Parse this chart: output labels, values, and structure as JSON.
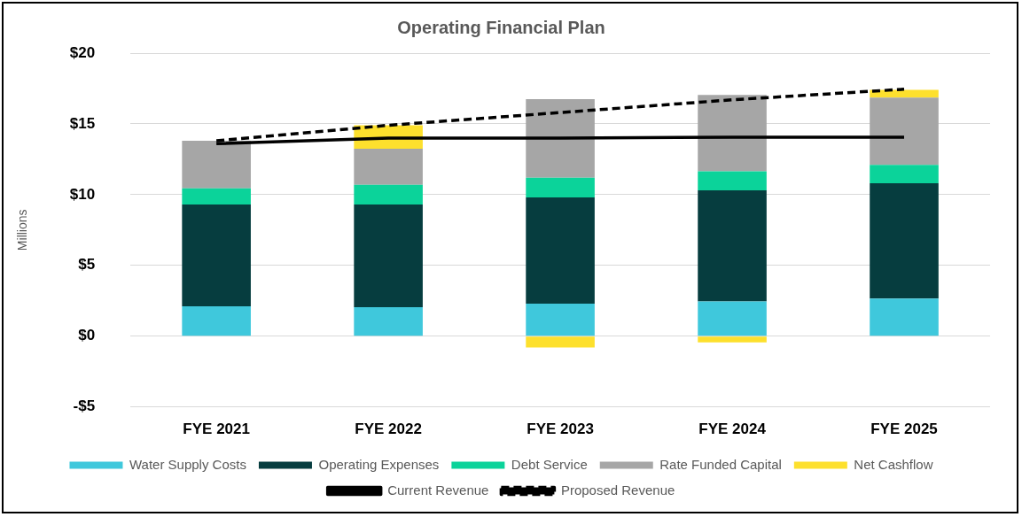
{
  "chart_data": {
    "type": "bar",
    "title": "Operating Financial Plan",
    "ylabel": "Millions",
    "stacked": true,
    "categories": [
      "FYE 2021",
      "FYE 2022",
      "FYE 2023",
      "FYE 2024",
      "FYE 2025"
    ],
    "series": [
      {
        "name": "Water Supply Costs",
        "color": "#3fc8dc",
        "values": [
          2.1,
          2.05,
          2.3,
          2.45,
          2.65
        ]
      },
      {
        "name": "Operating Expenses",
        "color": "#063d3f",
        "values": [
          7.2,
          7.25,
          7.5,
          7.85,
          8.15
        ]
      },
      {
        "name": "Debt Service",
        "color": "#0bd39a",
        "values": [
          1.15,
          1.4,
          1.4,
          1.35,
          1.3
        ]
      },
      {
        "name": "Rate Funded Capital",
        "color": "#a6a6a6",
        "values": [
          3.35,
          2.55,
          5.55,
          5.4,
          4.75
        ]
      },
      {
        "name": "Net Cashflow",
        "color": "#fde02d",
        "values": [
          null,
          1.65,
          -0.8,
          -0.45,
          0.55
        ]
      },
      {
        "name": "Current Revenue",
        "type": "line",
        "color": "#000000",
        "line_style": "solid",
        "values": [
          13.6,
          14.0,
          14.0,
          14.05,
          14.05
        ]
      },
      {
        "name": "Proposed Revenue",
        "type": "line",
        "color": "#000000",
        "line_style": "dashed",
        "values": [
          13.8,
          14.9,
          15.8,
          16.7,
          17.45
        ]
      }
    ],
    "ylim": [
      -5,
      20
    ],
    "yticks": [
      {
        "value": -5,
        "label": "-$5"
      },
      {
        "value": 0,
        "label": "$0"
      },
      {
        "value": 5,
        "label": "$5"
      },
      {
        "value": 10,
        "label": "$10"
      },
      {
        "value": 15,
        "label": "$15"
      },
      {
        "value": 20,
        "label": "$20"
      }
    ],
    "grid": "y",
    "legend": "bottom",
    "marker": "none"
  }
}
